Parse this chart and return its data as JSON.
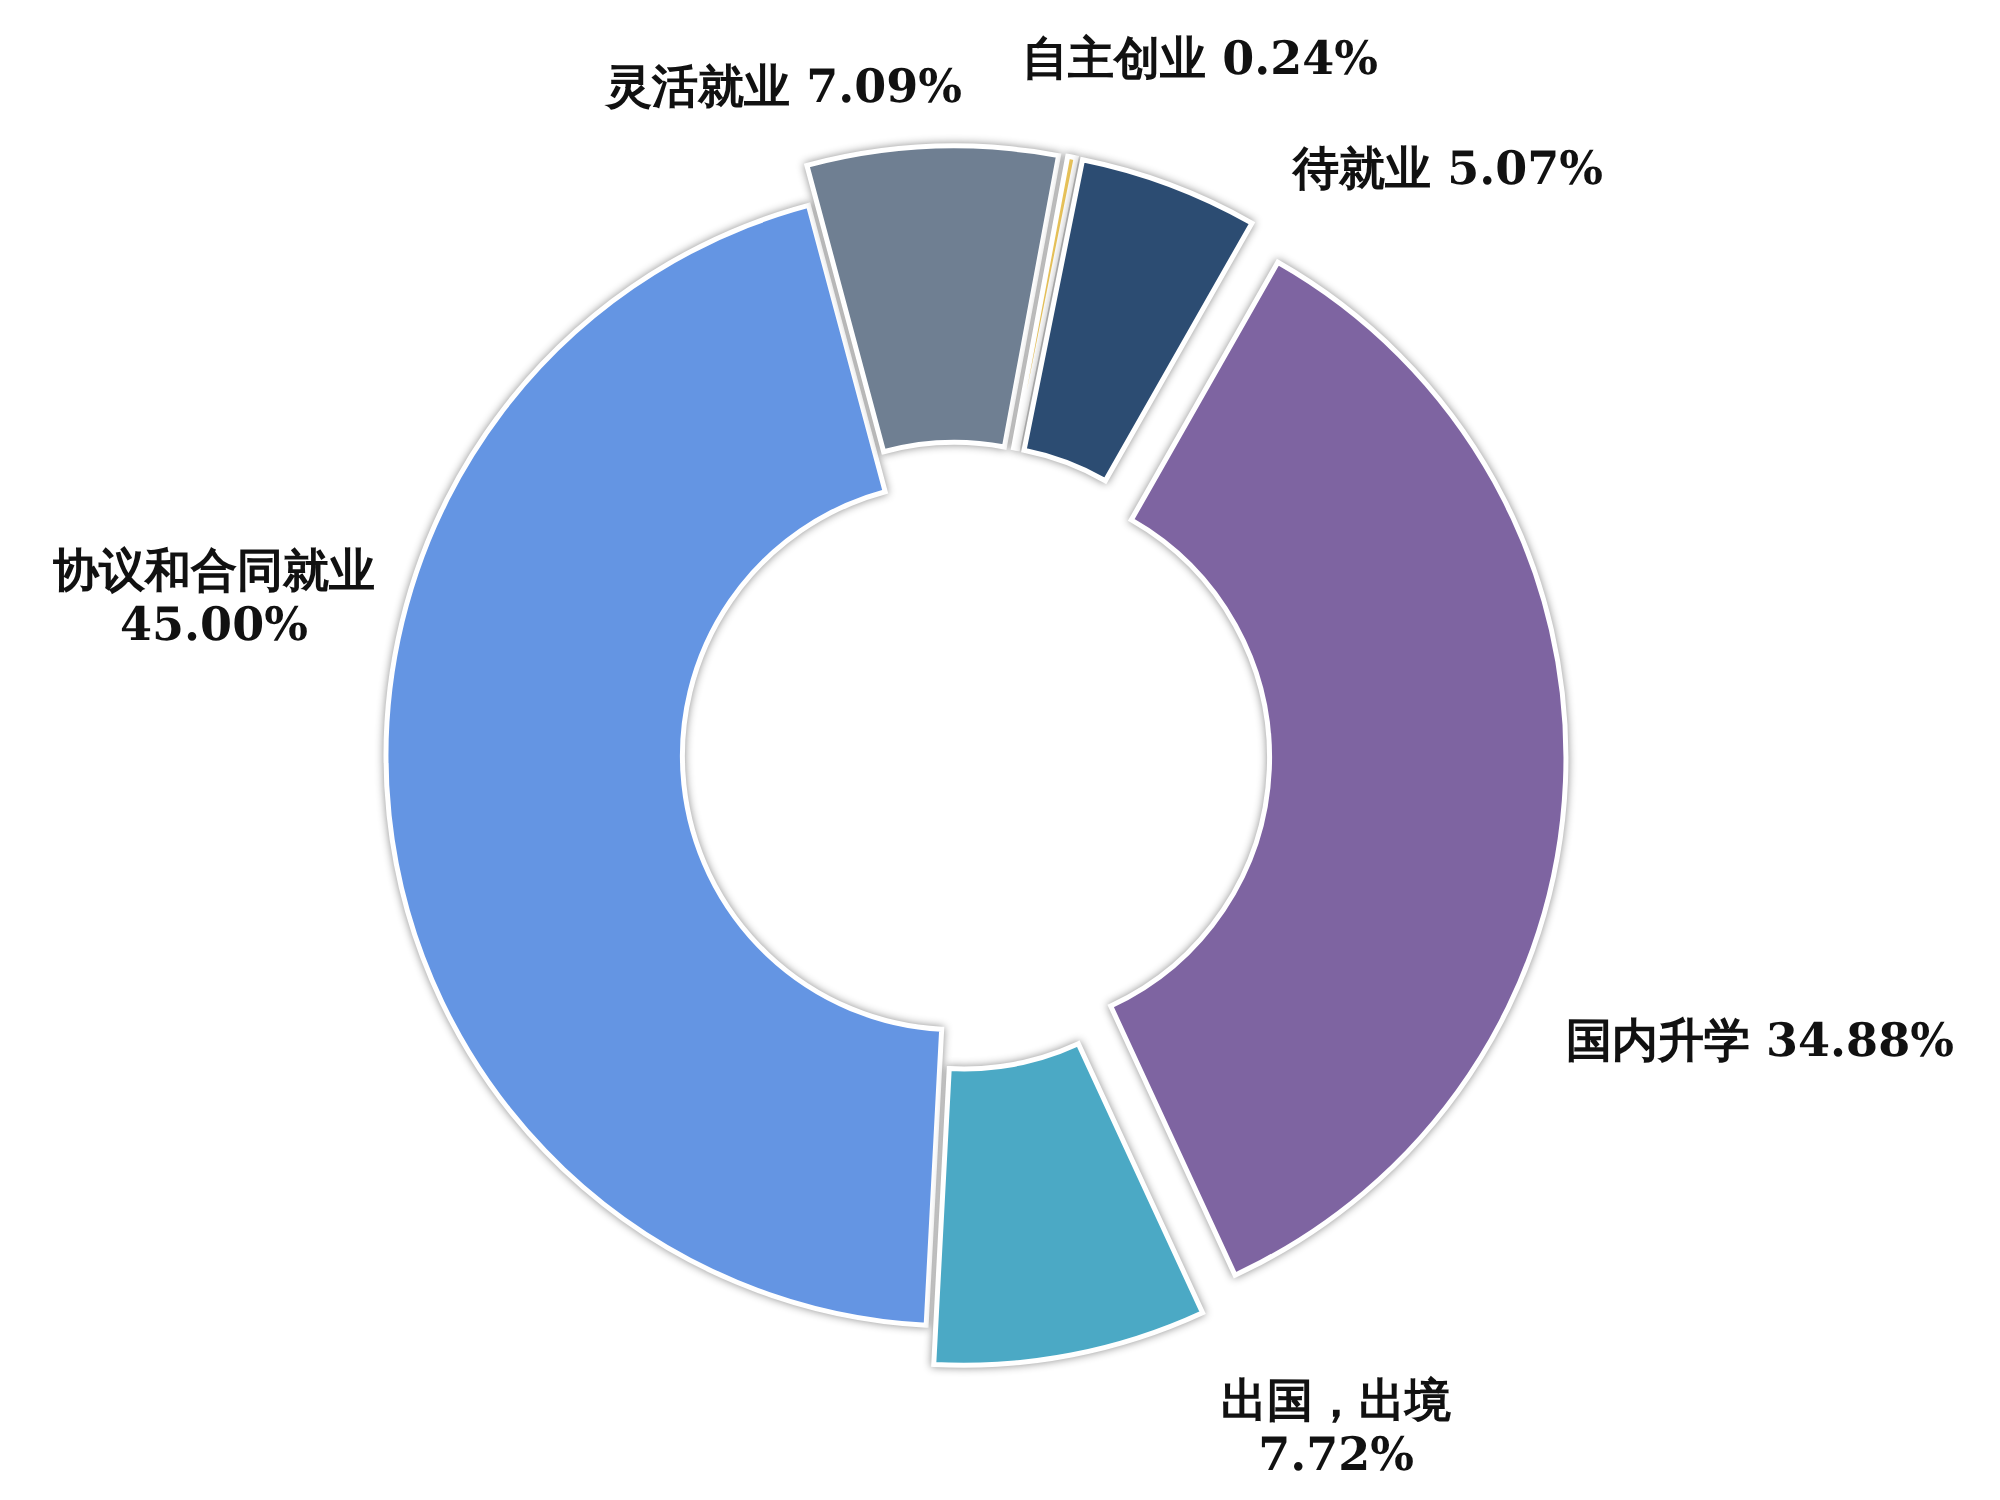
{
  "chart_data": {
    "type": "donut",
    "categories": [
      "协议和合同就业",
      "灵活就业",
      "自主创业",
      "待就业",
      "国内升学",
      "出国，出境"
    ],
    "values": [
      45.0,
      7.09,
      0.24,
      5.07,
      34.88,
      7.72
    ],
    "colors": [
      "#6495e3",
      "#6f7f92",
      "#e8c35a",
      "#2c4c72",
      "#7e64a1",
      "#4ba9c5"
    ],
    "value_labels": [
      "45.00%",
      "7.09%",
      "0.24%",
      "5.07%",
      "34.88%",
      "7.72%"
    ]
  }
}
